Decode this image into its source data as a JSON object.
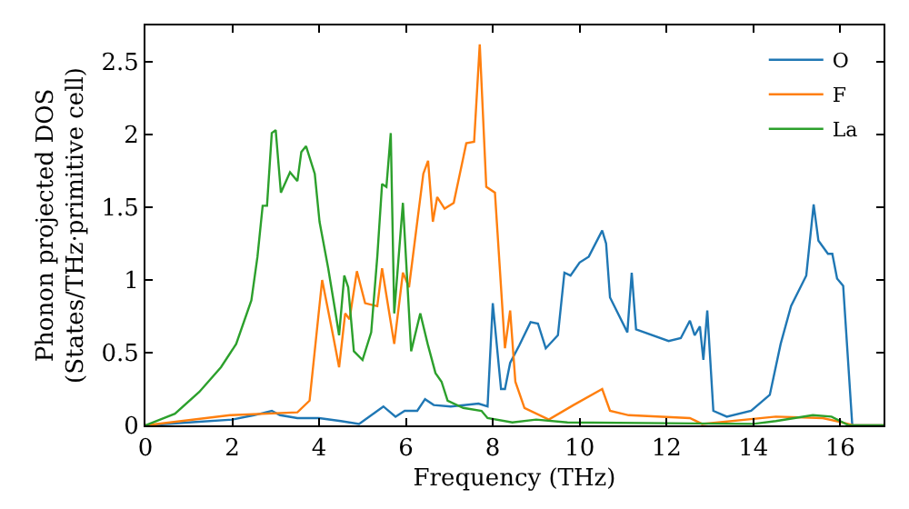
{
  "chart_data": {
    "type": "line",
    "xlabel": "Frequency (THz)",
    "ylabel": "Phonon projected DOS\n(States/THz·primitive cell)",
    "xlim": [
      0,
      17
    ],
    "ylim": [
      0,
      2.75
    ],
    "xticks": [
      0,
      2,
      4,
      6,
      8,
      10,
      12,
      14,
      16
    ],
    "yticks": [
      0,
      0.5,
      1,
      1.5,
      2,
      2.5
    ],
    "grid": false,
    "legend": "top right",
    "marker": "none",
    "line_style": "solid",
    "series": [
      {
        "name": "O",
        "color": "#1f77b4",
        "x": [
          0,
          1,
          2,
          2.5,
          2.91,
          3.1,
          3.5,
          4,
          4.5,
          4.92,
          5.48,
          5.76,
          5.97,
          6.26,
          6.44,
          6.64,
          7.03,
          7.67,
          7.88,
          8.0,
          8.19,
          8.28,
          8.4,
          8.61,
          8.87,
          9.04,
          9.22,
          9.5,
          9.65,
          9.79,
          10,
          10.21,
          10.52,
          10.61,
          10.7,
          11.1,
          11.2,
          11.3,
          12.05,
          12.33,
          12.54,
          12.65,
          12.77,
          12.85,
          12.94,
          13.08,
          13.39,
          13.95,
          14.38,
          14.63,
          14.87,
          15.22,
          15.39,
          15.5,
          15.72,
          15.82,
          15.93,
          16.07,
          16.28,
          17
        ],
        "values": [
          0,
          0.02,
          0.04,
          0.07,
          0.1,
          0.07,
          0.05,
          0.05,
          0.03,
          0.01,
          0.13,
          0.06,
          0.1,
          0.1,
          0.18,
          0.14,
          0.13,
          0.15,
          0.13,
          0.84,
          0.25,
          0.25,
          0.43,
          0.55,
          0.71,
          0.7,
          0.53,
          0.62,
          1.05,
          1.03,
          1.12,
          1.16,
          1.34,
          1.25,
          0.88,
          0.64,
          1.05,
          0.66,
          0.58,
          0.6,
          0.72,
          0.62,
          0.68,
          0.45,
          0.79,
          0.1,
          0.06,
          0.1,
          0.21,
          0.56,
          0.82,
          1.03,
          1.52,
          1.27,
          1.18,
          1.18,
          1.01,
          0.96,
          0,
          0
        ]
      },
      {
        "name": "F",
        "color": "#ff7f0e",
        "x": [
          0,
          1.95,
          3.5,
          3.78,
          4.07,
          4.32,
          4.46,
          4.6,
          4.7,
          4.87,
          5.06,
          5.34,
          5.45,
          5.73,
          5.93,
          6.07,
          6.4,
          6.51,
          6.62,
          6.72,
          6.89,
          7.1,
          7.39,
          7.57,
          7.7,
          7.85,
          8.05,
          8.28,
          8.4,
          8.52,
          8.73,
          9.29,
          9.86,
          10.52,
          10.7,
          11.13,
          12.54,
          12.82,
          14.52,
          15.6,
          16.06,
          16.3,
          17
        ],
        "values": [
          0,
          0.07,
          0.09,
          0.17,
          1.0,
          0.62,
          0.4,
          0.77,
          0.73,
          1.06,
          0.84,
          0.82,
          1.08,
          0.56,
          1.05,
          0.95,
          1.73,
          1.82,
          1.4,
          1.57,
          1.49,
          1.53,
          1.94,
          1.95,
          2.62,
          1.64,
          1.6,
          0.53,
          0.79,
          0.3,
          0.12,
          0.04,
          0.14,
          0.25,
          0.1,
          0.07,
          0.05,
          0.01,
          0.06,
          0.05,
          0.02,
          0,
          0
        ]
      },
      {
        "name": "La",
        "color": "#2ca02c",
        "x": [
          0,
          0.68,
          1.24,
          1.74,
          2.09,
          2.44,
          2.58,
          2.7,
          2.8,
          2.91,
          3.0,
          3.12,
          3.33,
          3.5,
          3.59,
          3.7,
          3.9,
          4.01,
          4.21,
          4.38,
          4.46,
          4.58,
          4.67,
          4.8,
          5.0,
          5.2,
          5.34,
          5.45,
          5.55,
          5.65,
          5.73,
          5.93,
          6.12,
          6.33,
          6.5,
          6.68,
          6.82,
          6.96,
          7.32,
          7.74,
          7.88,
          8.45,
          9.0,
          9.72,
          14.0,
          14.52,
          15.37,
          15.8,
          16.2,
          17
        ],
        "values": [
          0,
          0.08,
          0.23,
          0.4,
          0.56,
          0.86,
          1.16,
          1.51,
          1.51,
          2.01,
          2.03,
          1.6,
          1.74,
          1.68,
          1.88,
          1.92,
          1.73,
          1.4,
          1.08,
          0.77,
          0.62,
          1.03,
          0.95,
          0.51,
          0.45,
          0.64,
          1.16,
          1.66,
          1.64,
          2.01,
          0.77,
          1.53,
          0.51,
          0.77,
          0.56,
          0.36,
          0.3,
          0.17,
          0.12,
          0.1,
          0.05,
          0.02,
          0.04,
          0.02,
          0.01,
          0.03,
          0.07,
          0.06,
          0,
          0
        ]
      }
    ]
  }
}
